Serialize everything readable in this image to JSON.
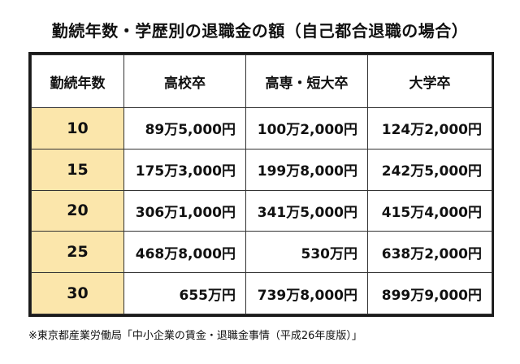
{
  "chart_data": {
    "type": "table",
    "title": "勤続年数・学歴別の退職金の額（自己都合退職の場合）",
    "columns": [
      "勤続年数",
      "高校卒",
      "高専・短大卒",
      "大学卒"
    ],
    "rows": [
      {
        "years": "10",
        "values": [
          "89万5,000円",
          "100万2,000円",
          "124万2,000円"
        ]
      },
      {
        "years": "15",
        "values": [
          "175万3,000円",
          "199万8,000円",
          "242万5,000円"
        ]
      },
      {
        "years": "20",
        "values": [
          "306万1,000円",
          "341万5,000円",
          "415万4,000円"
        ]
      },
      {
        "years": "25",
        "values": [
          "468万8,000円",
          "530万円",
          "638万2,000円"
        ]
      },
      {
        "years": "30",
        "values": [
          "655万円",
          "739万8,000円",
          "899万9,000円"
        ]
      }
    ],
    "source": "※東京都産業労働局「中小企業の賃金・退職金事情（平成26年度版）」"
  },
  "colors": {
    "year_cell": "#fbe6ab",
    "border": "#1a1a1a",
    "text": "#111111"
  }
}
